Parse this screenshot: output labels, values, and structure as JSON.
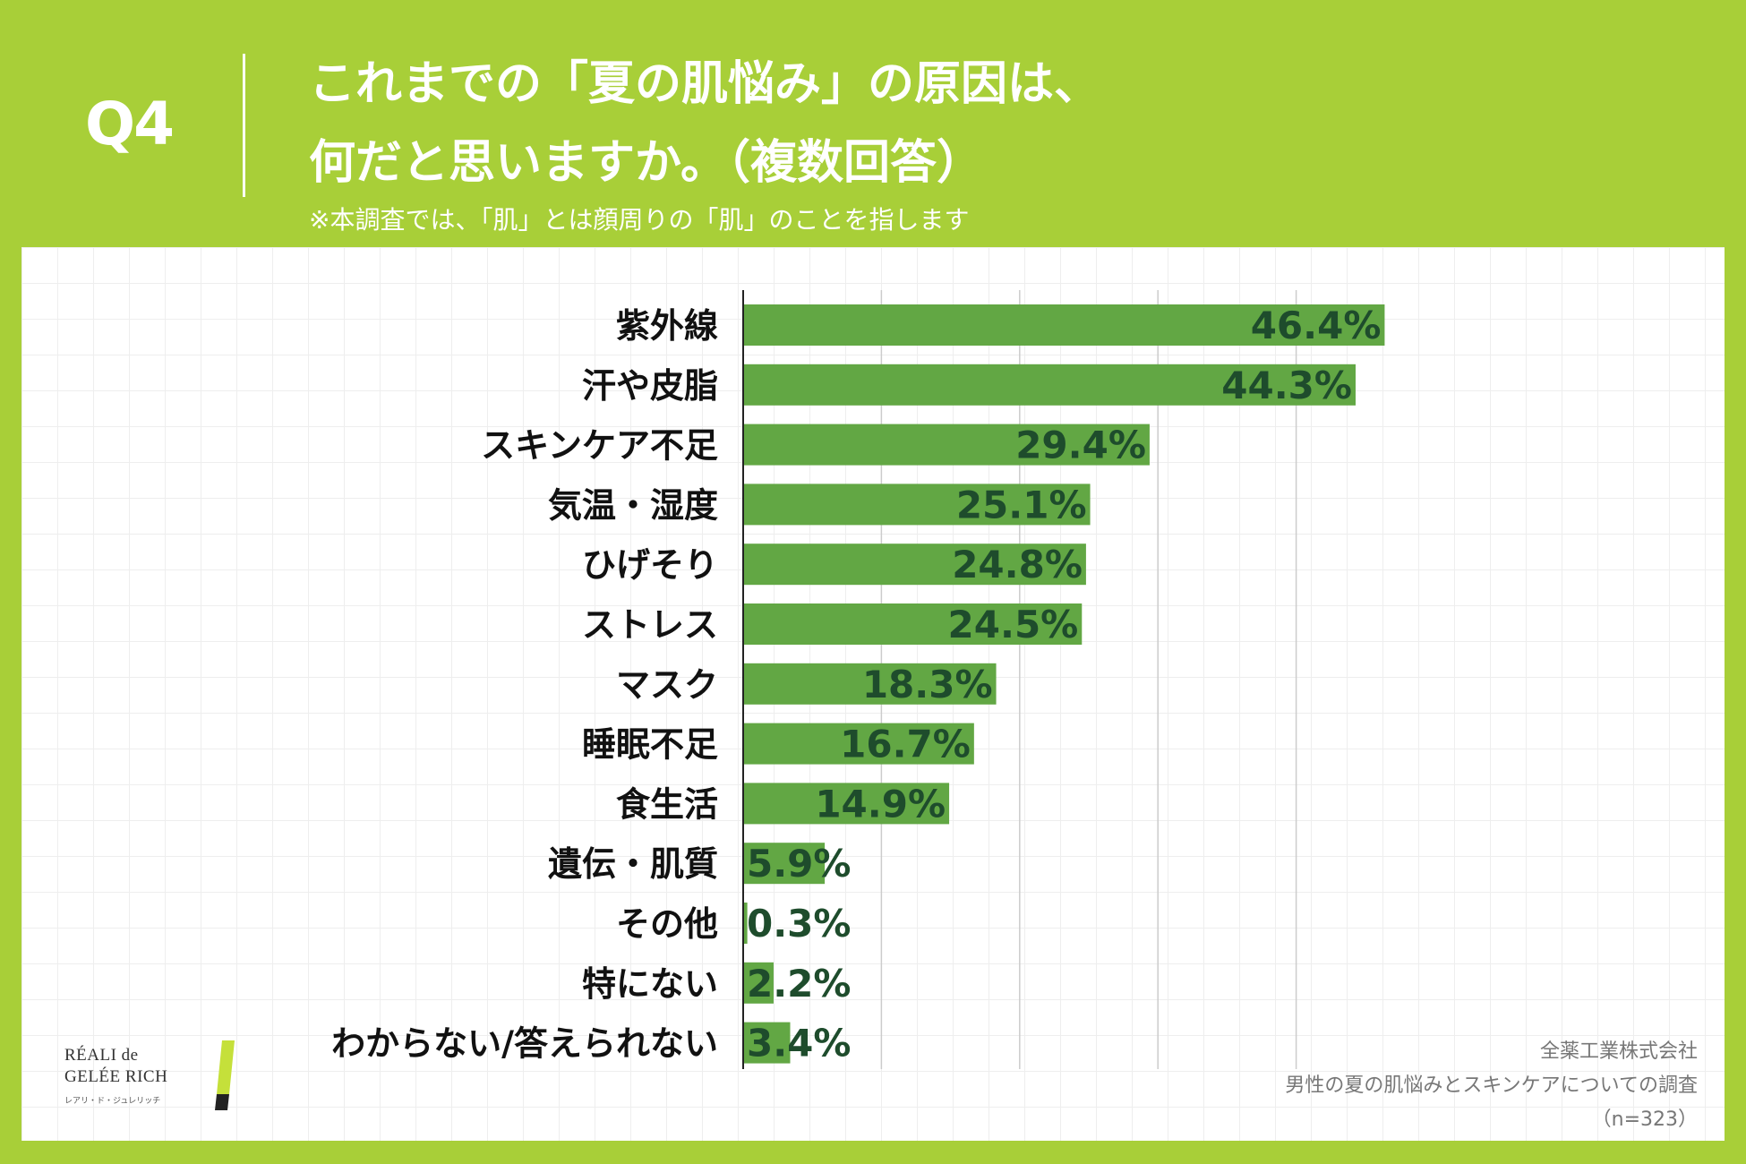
{
  "header": {
    "q_label": "Q4",
    "title_line1": "これまでの「夏の肌悩み」の原因は、",
    "title_line2": "何だと思いますか。（複数回答）",
    "note": "※本調査では、「肌」とは顔周りの「肌」のことを指します"
  },
  "credit": {
    "company": "全薬工業株式会社",
    "survey": "男性の夏の肌悩みとスキンケアについての調査",
    "sample": "（n=323）"
  },
  "logo": {
    "line1": "RÉALI de",
    "line2": "GELÉE RICH",
    "line3": "レアリ・ド・ジュレリッチ"
  },
  "colors": {
    "background": "#a8cf38",
    "bar": "#62a744",
    "value_label": "#1e4c2c",
    "category_label": "#111111",
    "gridline": "#cccccc"
  },
  "chart_data": {
    "type": "bar",
    "orientation": "horizontal",
    "title": "これまでの「夏の肌悩み」の原因は、何だと思いますか。（複数回答）",
    "xlabel": "",
    "ylabel": "",
    "xlim": [
      0,
      100
    ],
    "x_gridlines": [
      0,
      10,
      20,
      30,
      40
    ],
    "value_suffix": "%",
    "categories": [
      "紫外線",
      "汗や皮脂",
      "スキンケア不足",
      "気温・湿度",
      "ひげそり",
      "ストレス",
      "マスク",
      "睡眠不足",
      "食生活",
      "遺伝・肌質",
      "その他",
      "特にない",
      "わからない/答えられない"
    ],
    "values": [
      46.4,
      44.3,
      29.4,
      25.1,
      24.8,
      24.5,
      18.3,
      16.7,
      14.9,
      5.9,
      0.3,
      2.2,
      3.4
    ]
  }
}
